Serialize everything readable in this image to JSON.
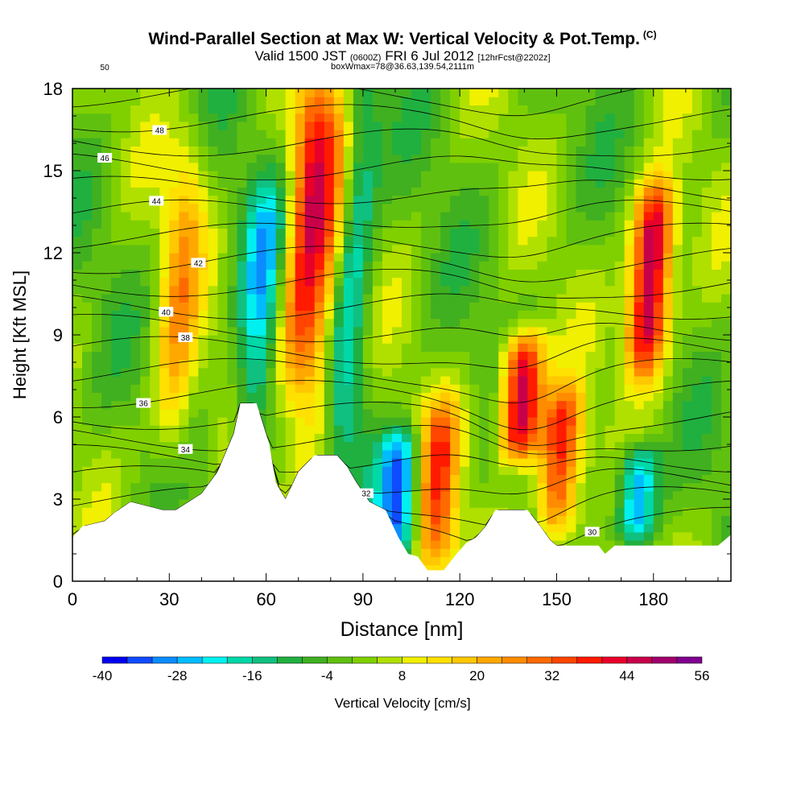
{
  "header": {
    "title": "Wind-Parallel Section at Max W: Vertical Velocity & Pot.Temp.",
    "copyright": "(C)",
    "valid_prefix": "Valid 1500 JST",
    "utc": "(0600Z)",
    "valid_date": "FRI 6 Jul 2012",
    "forecast": "[12hrFcst@2202z]",
    "boxinfo": "boxWmax=78@36.63,139.54,2111m"
  },
  "chart_data": {
    "type": "heatmap",
    "xlabel": "Distance [nm]",
    "ylabel": "Height [Kft MSL]",
    "xlim": [
      0,
      204
    ],
    "ylim": [
      0,
      18
    ],
    "xticks": [
      0,
      30,
      60,
      90,
      120,
      150,
      180
    ],
    "yticks": [
      0,
      3,
      6,
      9,
      12,
      15,
      18
    ],
    "colorbar": {
      "label": "Vertical Velocity [cm/s]",
      "ticks": [
        -40,
        -28,
        -16,
        -4,
        8,
        20,
        32,
        44,
        56
      ],
      "levels": [
        -40,
        -36,
        -32,
        -28,
        -24,
        -20,
        -16,
        -12,
        -8,
        -4,
        0,
        4,
        8,
        12,
        16,
        20,
        24,
        28,
        32,
        36,
        40,
        44,
        48,
        52,
        56
      ],
      "colors": [
        "#0000f0",
        "#0f4bff",
        "#0a8cff",
        "#00bcff",
        "#00f0f0",
        "#00d8a8",
        "#10c080",
        "#20b040",
        "#40b020",
        "#60c010",
        "#80d000",
        "#b0e000",
        "#f0f000",
        "#ffe000",
        "#ffc800",
        "#ffa800",
        "#ff8c00",
        "#ff6a00",
        "#ff4500",
        "#ff1a00",
        "#e8002a",
        "#c8004a",
        "#a0006e",
        "#800090"
      ]
    },
    "vertical_velocity_features": [
      {
        "x": 33,
        "z0": 4.5,
        "z1": 15.5,
        "peak": 20,
        "sign": "updraft"
      },
      {
        "x": 58,
        "z0": 5.5,
        "z1": 14,
        "peak": -24,
        "sign": "downdraft"
      },
      {
        "x": 72,
        "z0": 7,
        "z1": 18,
        "peak": 36,
        "sign": "updraft"
      },
      {
        "x": 79,
        "z0": 4.5,
        "z1": 18,
        "peak": 24,
        "sign": "updraft"
      },
      {
        "x": 86,
        "z0": 5,
        "z1": 18,
        "peak": -24,
        "sign": "downdraft"
      },
      {
        "x": 101,
        "z0": 1.5,
        "z1": 5,
        "peak": -36,
        "sign": "downdraft"
      },
      {
        "x": 113,
        "z0": 0.5,
        "z1": 6,
        "peak": 32,
        "sign": "updraft"
      },
      {
        "x": 139,
        "z0": 5,
        "z1": 8.5,
        "peak": 52,
        "sign": "updraft"
      },
      {
        "x": 151,
        "z0": 2,
        "z1": 6.5,
        "peak": 40,
        "sign": "updraft"
      },
      {
        "x": 175,
        "z0": 2,
        "z1": 4.5,
        "peak": -32,
        "sign": "downdraft"
      },
      {
        "x": 179,
        "z0": 8,
        "z1": 14,
        "peak": 56,
        "sign": "updraft"
      }
    ],
    "terrain": {
      "x": [
        0,
        3,
        10,
        13,
        18,
        28,
        32,
        40,
        45,
        50,
        52,
        57,
        61,
        63,
        66,
        70,
        75,
        82,
        85,
        88,
        92,
        97,
        101,
        104,
        107,
        110,
        115,
        119,
        122,
        125,
        128,
        131,
        134,
        138,
        141,
        145,
        148,
        150,
        163,
        165,
        168,
        200,
        204
      ],
      "height": [
        1.6,
        2.0,
        2.2,
        2.5,
        2.9,
        2.6,
        2.6,
        3.2,
        4.0,
        5.4,
        6.5,
        6.5,
        5.0,
        3.6,
        3.0,
        4.0,
        4.6,
        4.6,
        4.2,
        3.6,
        2.9,
        2.6,
        1.6,
        1.0,
        0.9,
        0.4,
        0.4,
        1.0,
        1.4,
        1.6,
        2.0,
        2.6,
        2.6,
        2.6,
        2.6,
        2.0,
        1.5,
        1.3,
        1.3,
        1.0,
        1.3,
        1.3,
        1.7
      ]
    },
    "theta_contours": [
      {
        "value": 30,
        "label": "30",
        "label_x": 161
      },
      {
        "value": 32,
        "label": "32",
        "label_x": 91
      },
      {
        "value": 34,
        "label": "34",
        "label_x": 35
      },
      {
        "value": 36,
        "label": "36",
        "label_x": 22
      },
      {
        "value": 38,
        "label": "38",
        "label_x": 35
      },
      {
        "value": 40,
        "label": "40",
        "label_x": 29
      },
      {
        "value": 42,
        "label": "42",
        "label_x": 39
      },
      {
        "value": 44,
        "label": "44",
        "label_x": 26
      },
      {
        "value": 46,
        "label": "46",
        "label_x": 10
      },
      {
        "value": 48,
        "label": "48",
        "label_x": 27
      },
      {
        "value": 50,
        "label": "50",
        "label_x": 10
      }
    ]
  }
}
